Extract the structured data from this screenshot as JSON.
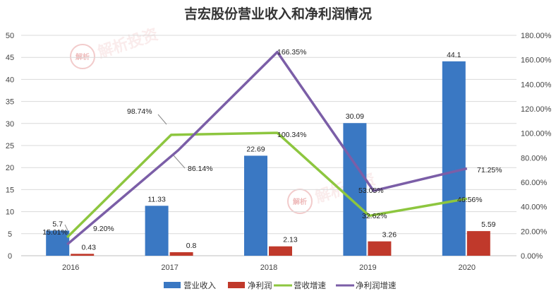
{
  "chart_data": {
    "type": "bar",
    "title": "吉宏股份营业收入和净利润情况",
    "categories": [
      "2016",
      "2017",
      "2018",
      "2019",
      "2020"
    ],
    "series": [
      {
        "name": "营业收入",
        "kind": "bar",
        "axis": "left",
        "color": "#3a78c3",
        "values": [
          5.7,
          11.33,
          22.69,
          30.09,
          44.1
        ],
        "labels": [
          "5.7",
          "11.33",
          "22.69",
          "30.09",
          "44.1"
        ]
      },
      {
        "name": "净利润",
        "kind": "bar",
        "axis": "left",
        "color": "#c0392b",
        "values": [
          0.43,
          0.8,
          2.13,
          3.26,
          5.59
        ],
        "labels": [
          "0.43",
          "0.8",
          "2.13",
          "3.26",
          "5.59"
        ]
      },
      {
        "name": "营收增速",
        "kind": "line",
        "axis": "right",
        "color": "#8dc63f",
        "values": [
          15.01,
          98.74,
          100.34,
          32.62,
          46.56
        ],
        "labels": [
          "15.01%",
          "98.74%",
          "100.34%",
          "32.62%",
          "46.56%"
        ]
      },
      {
        "name": "净利润增速",
        "kind": "line",
        "axis": "right",
        "color": "#7b5ea7",
        "values": [
          9.2,
          86.14,
          166.35,
          53.05,
          71.25
        ],
        "labels": [
          "9.20%",
          "86.14%",
          "166.35%",
          "53.05%",
          "71.25%"
        ]
      }
    ],
    "y_left": {
      "min": 0,
      "max": 50,
      "step": 5,
      "ticks": [
        "0",
        "5",
        "10",
        "15",
        "20",
        "25",
        "30",
        "35",
        "40",
        "45",
        "50"
      ]
    },
    "y_right": {
      "min": 0,
      "max": 180,
      "step": 20,
      "ticks": [
        "0.00%",
        "20.00%",
        "40.00%",
        "60.00%",
        "80.00%",
        "100.00%",
        "120.00%",
        "140.00%",
        "160.00%",
        "180.00%"
      ]
    },
    "grid": true,
    "legend": "bottom"
  },
  "watermark": {
    "text": "解析投资",
    "seal": "解析"
  }
}
